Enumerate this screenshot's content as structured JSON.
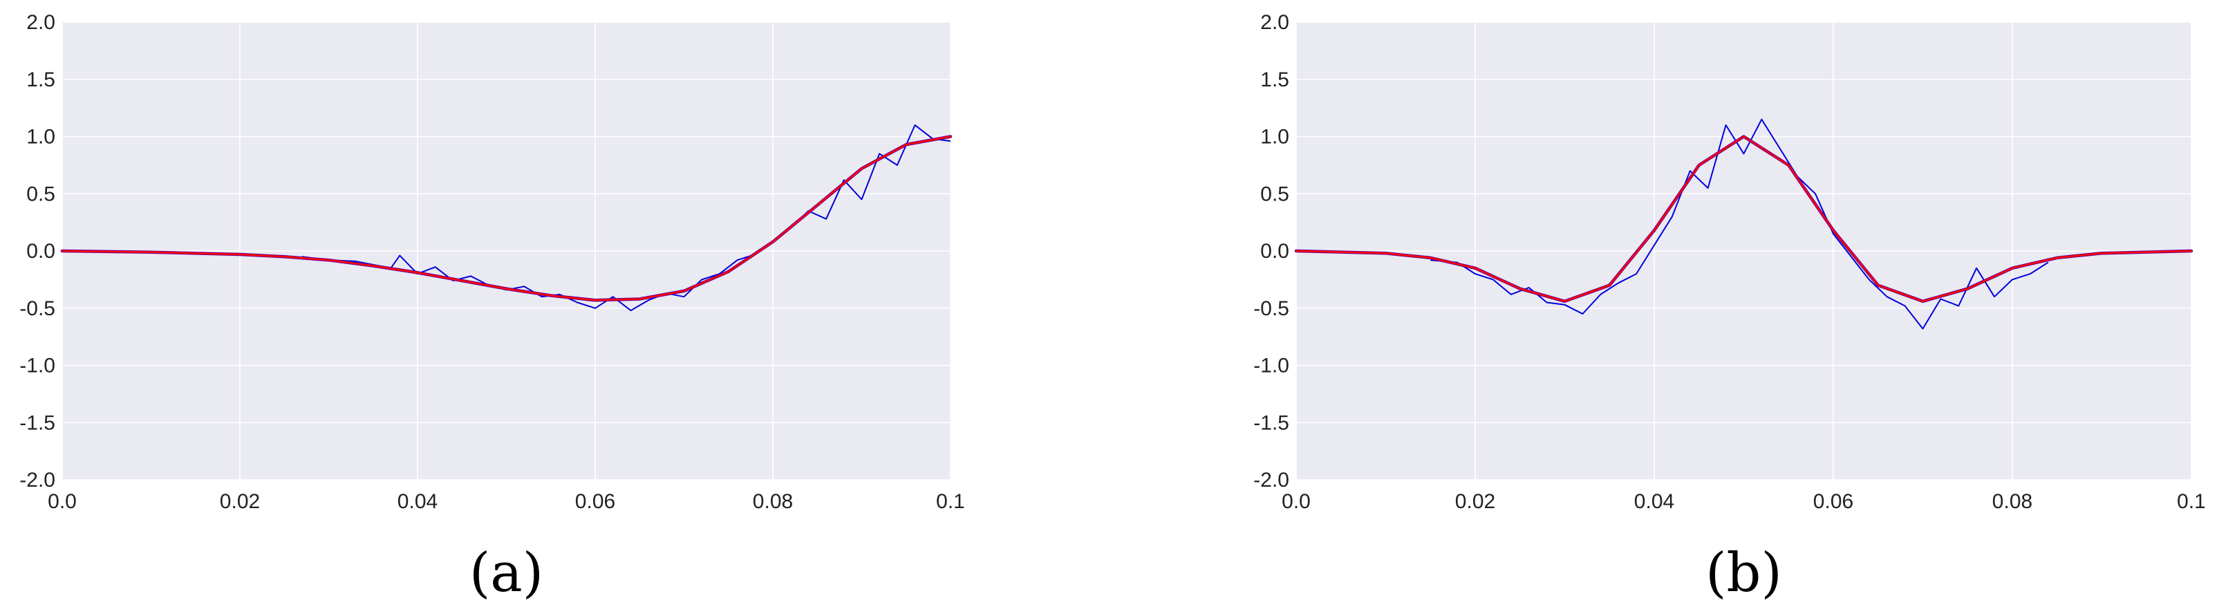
{
  "colors": {
    "plot_background": "#eaeaf2",
    "grid": "#ffffff",
    "noisy_signal": "#0000dd",
    "smooth_signal": "#ff0000",
    "envelope_signal": "#660099"
  },
  "chart_data": [
    {
      "type": "line",
      "panel_label": "(a)",
      "title": "",
      "xlabel": "",
      "ylabel": "",
      "xlim": [
        0.0,
        0.1
      ],
      "ylim": [
        -2.0,
        2.0
      ],
      "x_ticks": [
        0.0,
        0.02,
        0.04,
        0.06,
        0.08,
        0.1
      ],
      "x_tick_labels": [
        "0.0",
        "0.02",
        "0.04",
        "0.06",
        "0.08",
        "0.1"
      ],
      "y_ticks": [
        2.0,
        1.5,
        1.0,
        0.5,
        0.0,
        -0.5,
        -1.0,
        -1.5,
        -2.0
      ],
      "y_tick_labels": [
        "2.0",
        "1.5",
        "1.0",
        "0.5",
        "0.0",
        "-0.5",
        "-1.0",
        "-1.5",
        "-2.0"
      ],
      "grid": true,
      "legend": "none",
      "series": [
        {
          "style": "noisy",
          "x": [
            0.027,
            0.03,
            0.033,
            0.035,
            0.037,
            0.038,
            0.04,
            0.042,
            0.044,
            0.046,
            0.048,
            0.05,
            0.052,
            0.054,
            0.056,
            0.058,
            0.06,
            0.062,
            0.064,
            0.066,
            0.068,
            0.07,
            0.072,
            0.074,
            0.076,
            0.078,
            0.08,
            0.082,
            0.084,
            0.086,
            0.088,
            0.09,
            0.092,
            0.094,
            0.096,
            0.098,
            0.1
          ],
          "y": [
            -0.05,
            -0.08,
            -0.09,
            -0.12,
            -0.15,
            -0.04,
            -0.2,
            -0.14,
            -0.26,
            -0.22,
            -0.3,
            -0.34,
            -0.31,
            -0.4,
            -0.38,
            -0.45,
            -0.5,
            -0.4,
            -0.52,
            -0.43,
            -0.37,
            -0.4,
            -0.25,
            -0.2,
            -0.08,
            -0.03,
            0.08,
            0.2,
            0.35,
            0.28,
            0.62,
            0.45,
            0.85,
            0.75,
            1.1,
            0.98,
            0.96
          ]
        },
        {
          "style": "smooth",
          "x": [
            0.0,
            0.01,
            0.02,
            0.025,
            0.03,
            0.035,
            0.04,
            0.045,
            0.05,
            0.055,
            0.06,
            0.065,
            0.07,
            0.075,
            0.08,
            0.085,
            0.09,
            0.095,
            0.1
          ],
          "y": [
            0.0,
            -0.01,
            -0.03,
            -0.05,
            -0.08,
            -0.13,
            -0.19,
            -0.26,
            -0.33,
            -0.39,
            -0.43,
            -0.42,
            -0.35,
            -0.18,
            0.08,
            0.4,
            0.72,
            0.93,
            1.0
          ]
        }
      ]
    },
    {
      "type": "line",
      "panel_label": "(b)",
      "title": "",
      "xlabel": "",
      "ylabel": "",
      "xlim": [
        0.0,
        0.1
      ],
      "ylim": [
        -2.0,
        2.0
      ],
      "x_ticks": [
        0.0,
        0.02,
        0.04,
        0.06,
        0.08,
        0.1
      ],
      "x_tick_labels": [
        "0.0",
        "0.02",
        "0.04",
        "0.06",
        "0.08",
        "0.1"
      ],
      "y_ticks": [
        2.0,
        1.5,
        1.0,
        0.5,
        0.0,
        -0.5,
        -1.0,
        -1.5,
        -2.0
      ],
      "y_tick_labels": [
        "2.0",
        "1.5",
        "1.0",
        "0.5",
        "0.0",
        "-0.5",
        "-1.0",
        "-1.5",
        "-2.0"
      ],
      "grid": true,
      "legend": "none",
      "series": [
        {
          "style": "noisy",
          "x": [
            0.015,
            0.018,
            0.02,
            0.022,
            0.024,
            0.026,
            0.028,
            0.03,
            0.032,
            0.034,
            0.036,
            0.038,
            0.04,
            0.042,
            0.044,
            0.046,
            0.048,
            0.05,
            0.052,
            0.054,
            0.056,
            0.058,
            0.06,
            0.062,
            0.064,
            0.066,
            0.068,
            0.07,
            0.072,
            0.074,
            0.076,
            0.078,
            0.08,
            0.082,
            0.084
          ],
          "y": [
            -0.08,
            -0.1,
            -0.2,
            -0.25,
            -0.38,
            -0.32,
            -0.45,
            -0.47,
            -0.55,
            -0.38,
            -0.28,
            -0.2,
            0.05,
            0.3,
            0.7,
            0.55,
            1.1,
            0.85,
            1.15,
            0.9,
            0.65,
            0.5,
            0.15,
            -0.05,
            -0.25,
            -0.4,
            -0.48,
            -0.68,
            -0.42,
            -0.48,
            -0.15,
            -0.4,
            -0.25,
            -0.2,
            -0.1
          ]
        },
        {
          "style": "smooth",
          "x": [
            0.0,
            0.01,
            0.015,
            0.02,
            0.025,
            0.03,
            0.035,
            0.04,
            0.045,
            0.05,
            0.055,
            0.06,
            0.065,
            0.07,
            0.075,
            0.08,
            0.085,
            0.09,
            0.1
          ],
          "y": [
            0.0,
            -0.02,
            -0.06,
            -0.15,
            -0.33,
            -0.44,
            -0.3,
            0.18,
            0.75,
            1.0,
            0.75,
            0.18,
            -0.3,
            -0.44,
            -0.33,
            -0.15,
            -0.06,
            -0.02,
            0.0
          ]
        }
      ]
    }
  ]
}
